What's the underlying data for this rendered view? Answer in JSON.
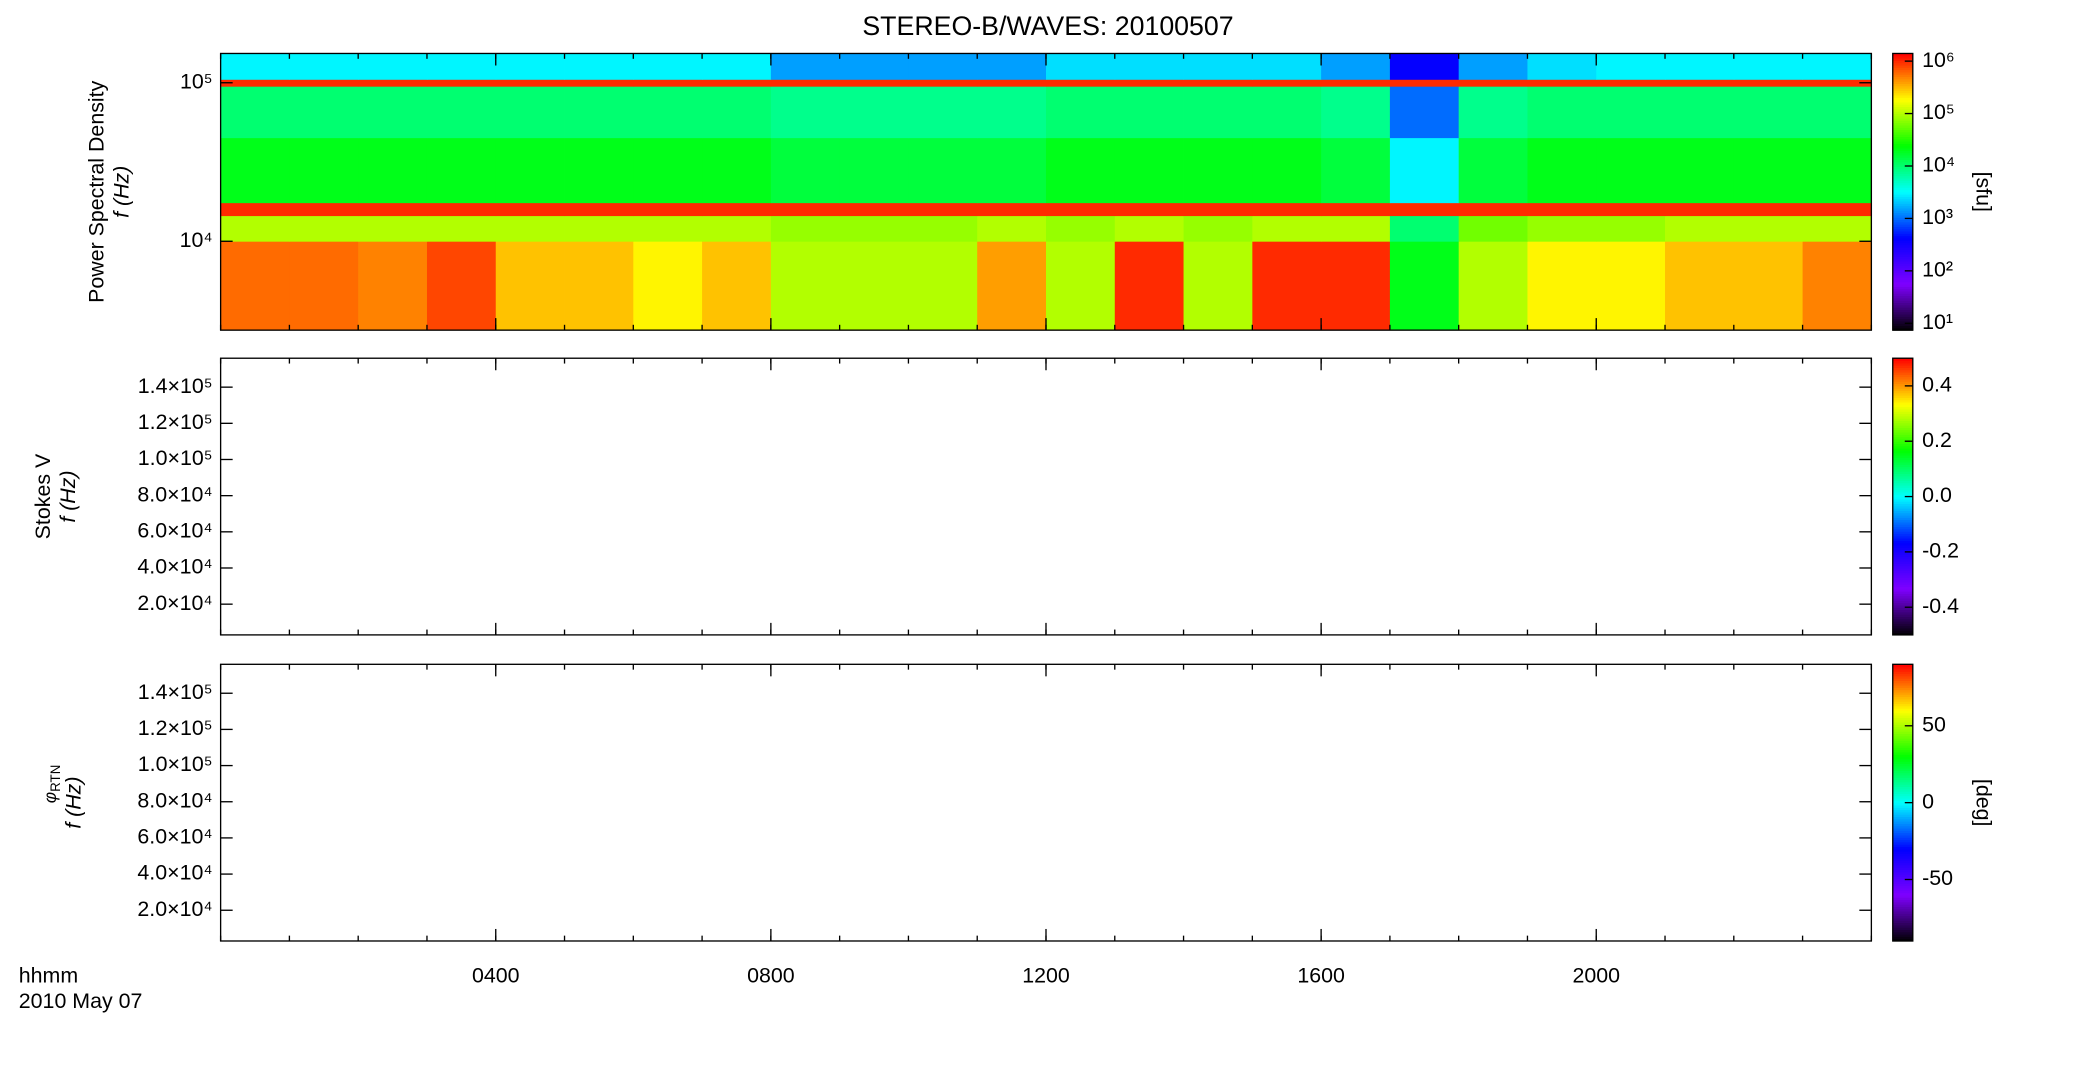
{
  "chart_data": [
    {
      "type": "heatmap",
      "title": "STEREO-B/WAVES: 20100507",
      "ylabel": "Power Spectral Density",
      "ylabel_unit": "f (Hz)",
      "zlabel": "[sfu]",
      "xlim": [
        0,
        24
      ],
      "xticks": [
        4,
        8,
        12,
        16,
        20
      ],
      "ylog": true,
      "ylim": [
        2750,
        153000
      ],
      "yticks": [
        {
          "value": 10000,
          "label": "10⁴"
        },
        {
          "value": 100000,
          "label": "10⁵"
        }
      ],
      "xbins": [
        0,
        1,
        2,
        3,
        4,
        5,
        6,
        7,
        8,
        9,
        10,
        11,
        12,
        13,
        14,
        15,
        16,
        17,
        18,
        19,
        20,
        21,
        22,
        23,
        24
      ],
      "ybins": [
        2750,
        10000,
        14500,
        17500,
        45000,
        95000,
        105000,
        153000
      ],
      "z": [
        [
          600000,
          600000,
          500000,
          800000,
          300000,
          300000,
          200000,
          300000,
          100000,
          100000,
          100000,
          400000,
          100000,
          1000000,
          100000,
          1000000,
          1000000,
          20000,
          100000,
          200000,
          200000,
          300000,
          300000,
          500000
        ],
        [
          100000,
          100000,
          100000,
          100000,
          100000,
          100000,
          100000,
          100000,
          80000,
          80000,
          80000,
          100000,
          80000,
          100000,
          80000,
          100000,
          100000,
          10000,
          60000,
          80000,
          80000,
          100000,
          100000,
          100000
        ],
        [
          1000000,
          1000000,
          1000000,
          1000000,
          1000000,
          1000000,
          1000000,
          1000000,
          1000000,
          1000000,
          1000000,
          1000000,
          1000000,
          1000000,
          1000000,
          1000000,
          1000000,
          1000000,
          1000000,
          1000000,
          1000000,
          1000000,
          1000000,
          1000000
        ],
        [
          20000,
          20000,
          20000,
          20000,
          20000,
          20000,
          20000,
          20000,
          15000,
          15000,
          15000,
          15000,
          20000,
          20000,
          20000,
          20000,
          15000,
          3000,
          15000,
          20000,
          20000,
          20000,
          20000,
          20000
        ],
        [
          10000,
          10000,
          10000,
          10000,
          10000,
          10000,
          10000,
          10000,
          8000,
          8000,
          8000,
          8000,
          10000,
          10000,
          10000,
          10000,
          8000,
          1000,
          8000,
          10000,
          10000,
          10000,
          10000,
          10000
        ],
        [
          1000000,
          1000000,
          1000000,
          1000000,
          1000000,
          1000000,
          1000000,
          1000000,
          1000000,
          1000000,
          1000000,
          1000000,
          1000000,
          1000000,
          1000000,
          1000000,
          1000000,
          1000000,
          1000000,
          1000000,
          1000000,
          1000000,
          1000000,
          1000000
        ],
        [
          3000,
          3000,
          3000,
          3000,
          3000,
          3000,
          3000,
          3000,
          1500,
          1500,
          1500,
          1500,
          2500,
          2500,
          2500,
          2500,
          1500,
          400,
          1500,
          2500,
          3000,
          3000,
          3000,
          3000
        ]
      ],
      "zlog": true,
      "zlim": [
        7.4,
        1400000
      ],
      "zticks": [
        {
          "value": 10,
          "label": "10¹"
        },
        {
          "value": 100,
          "label": "10²"
        },
        {
          "value": 1000,
          "label": "10³"
        },
        {
          "value": 10000,
          "label": "10⁴"
        },
        {
          "value": 100000,
          "label": "10⁵"
        },
        {
          "value": 1000000,
          "label": "10⁶"
        }
      ],
      "colormap": [
        "#000000",
        "#7f00ff",
        "#0000ff",
        "#00ffff",
        "#00ff00",
        "#ffff00",
        "#ff0000"
      ]
    },
    {
      "type": "heatmap",
      "ylabel": "Stokes V",
      "ylabel_unit": "f (Hz)",
      "xlim": [
        0,
        24
      ],
      "xticks": [
        4,
        8,
        12,
        16,
        20
      ],
      "ylog": false,
      "ylim": [
        3000,
        156000
      ],
      "yticks": [
        {
          "value": 20000,
          "label": "2.0×10⁴"
        },
        {
          "value": 40000,
          "label": "4.0×10⁴"
        },
        {
          "value": 60000,
          "label": "6.0×10⁴"
        },
        {
          "value": 80000,
          "label": "8.0×10⁴"
        },
        {
          "value": 100000,
          "label": "1.0×10⁵"
        },
        {
          "value": 120000,
          "label": "1.2×10⁵"
        },
        {
          "value": 140000,
          "label": "1.4×10⁵"
        }
      ],
      "zlog": false,
      "zlim": [
        -0.5,
        0.5
      ],
      "zticks": [
        -0.4,
        -0.2,
        {
          "value": 0,
          "label": "0.0"
        },
        0.2,
        0.4
      ],
      "colormap": [
        "#000000",
        "#7f00ff",
        "#0000ff",
        "#00ffff",
        "#00ff00",
        "#ffff00",
        "#ff0000"
      ]
    },
    {
      "type": "heatmap",
      "ylabel_symbol": "φ",
      "ylabel_subscript": "RTN",
      "ylabel_unit": "f (Hz)",
      "zlabel": "[deg]",
      "x_label": "hhmm",
      "x_sublabel": "2010 May 07",
      "xlim": [
        0,
        24
      ],
      "xticks": [
        {
          "value": 4,
          "label": "0400"
        },
        {
          "value": 8,
          "label": "0800"
        },
        {
          "value": 12,
          "label": "1200"
        },
        {
          "value": 16,
          "label": "1600"
        },
        {
          "value": 20,
          "label": "2000"
        }
      ],
      "ylog": false,
      "ylim": [
        3000,
        156000
      ],
      "yticks": [
        {
          "value": 20000,
          "label": "2.0×10⁴"
        },
        {
          "value": 40000,
          "label": "4.0×10⁴"
        },
        {
          "value": 60000,
          "label": "6.0×10⁴"
        },
        {
          "value": 80000,
          "label": "8.0×10⁴"
        },
        {
          "value": 100000,
          "label": "1.0×10⁵"
        },
        {
          "value": 120000,
          "label": "1.2×10⁵"
        },
        {
          "value": 140000,
          "label": "1.4×10⁵"
        }
      ],
      "zlog": false,
      "zlim": [
        -90,
        90
      ],
      "zticks": [
        -50,
        0,
        50
      ],
      "colormap": [
        "#000000",
        "#7f00ff",
        "#0000ff",
        "#00ffff",
        "#00ff00",
        "#ffff00",
        "#ff0000"
      ]
    }
  ]
}
